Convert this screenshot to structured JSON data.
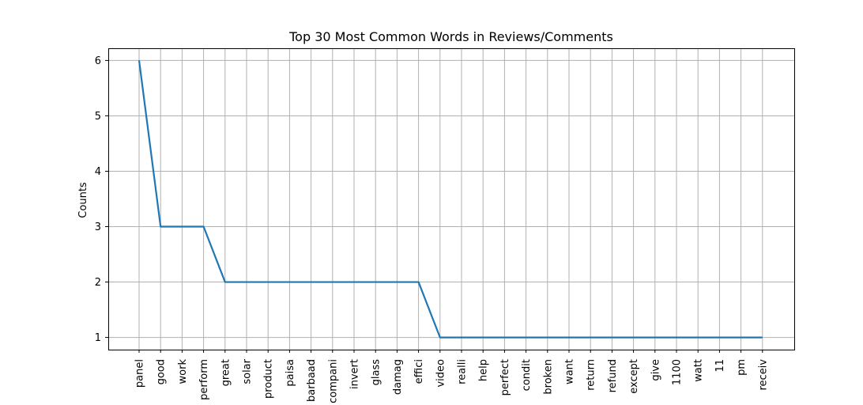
{
  "chart_data": {
    "type": "line",
    "title": "Top 30 Most Common Words in Reviews/Comments",
    "xlabel": "",
    "ylabel": "Counts",
    "categories": [
      "panel",
      "good",
      "work",
      "perform",
      "great",
      "solar",
      "product",
      "paisa",
      "barbaad",
      "compani",
      "invert",
      "glass",
      "damag",
      "effici",
      "video",
      "realli",
      "help",
      "perfect",
      "condit",
      "broken",
      "want",
      "return",
      "refund",
      "except",
      "give",
      "1100",
      "watt",
      "11",
      "pm",
      "receiv"
    ],
    "series": [
      {
        "values": [
          6,
          3,
          3,
          3,
          2,
          2,
          2,
          2,
          2,
          2,
          2,
          2,
          2,
          2,
          1,
          1,
          1,
          1,
          1,
          1,
          1,
          1,
          1,
          1,
          1,
          1,
          1,
          1,
          1,
          1
        ]
      }
    ],
    "yticks": [
      1,
      2,
      3,
      4,
      5,
      6
    ],
    "ylim": [
      0.78,
      6.22
    ],
    "grid": true,
    "line_color": "#1f77b4"
  }
}
